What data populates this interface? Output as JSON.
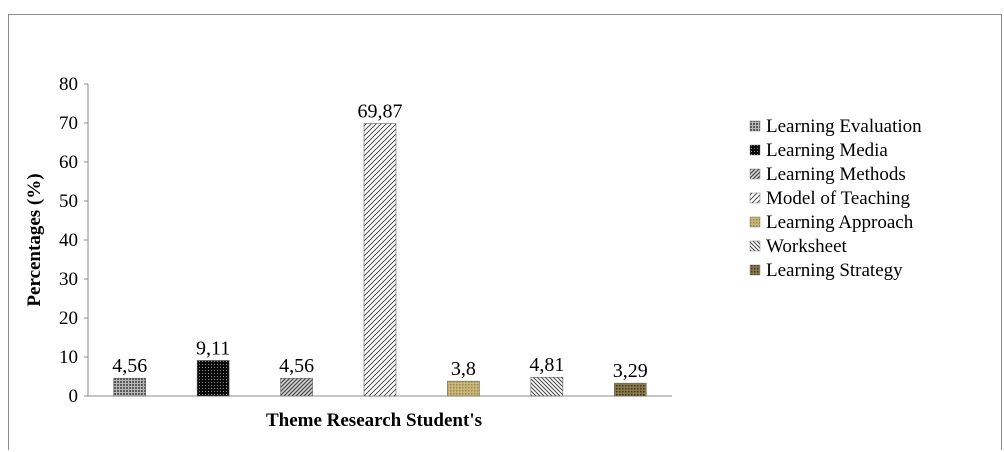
{
  "chart_data": {
    "type": "bar",
    "title": "",
    "xlabel": "Theme Research Student's",
    "ylabel": "Percentages (%)",
    "ylim": [
      0,
      80
    ],
    "yticks": [
      "0",
      "10",
      "20",
      "30",
      "40",
      "50",
      "60",
      "70",
      "80"
    ],
    "grid": false,
    "legend_position": "right",
    "categories": [
      "Learning Evaluation",
      "Learning Media",
      "Learning Methods",
      "Model of Teaching",
      "Learning Approach",
      "Worksheet",
      "Learning Strategy"
    ],
    "values": [
      4.56,
      9.11,
      4.56,
      69.87,
      3.8,
      4.81,
      3.29
    ],
    "data_labels": [
      "4,56",
      "9,11",
      "4,56",
      "69,87",
      "3,8",
      "4,81",
      "3,29"
    ],
    "patterns": [
      "dots-gray",
      "dense-black",
      "diagonal-dark",
      "diagonal-light",
      "olive-dots",
      "backdiagonal",
      "olive-dark-dots"
    ]
  }
}
